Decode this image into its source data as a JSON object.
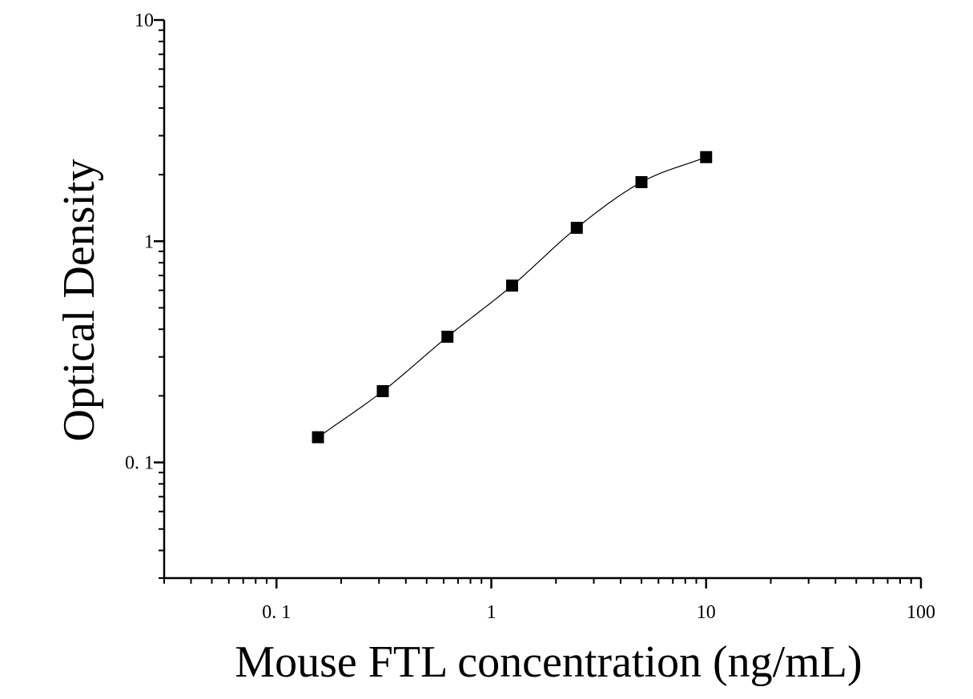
{
  "chart_data": {
    "type": "scatter",
    "title": "",
    "xlabel": "Mouse FTL concentration (ng/mL)",
    "ylabel": "Optical Density",
    "x_scale": "log",
    "y_scale": "log",
    "xlim": [
      0.03,
      100
    ],
    "ylim": [
      0.03,
      10
    ],
    "x_ticks": [
      {
        "value": 0.1,
        "label": "0. 1"
      },
      {
        "value": 1,
        "label": "1"
      },
      {
        "value": 10,
        "label": "10"
      },
      {
        "value": 100,
        "label": "100"
      }
    ],
    "y_ticks": [
      {
        "value": 0.1,
        "label": "0. 1"
      },
      {
        "value": 1,
        "label": "1"
      },
      {
        "value": 10,
        "label": "10"
      }
    ],
    "grid": false,
    "legend": "none",
    "colors": {
      "marker": "#000000",
      "curve": "#000000",
      "axis": "#000000"
    },
    "series": [
      {
        "x": [
          0.156,
          0.3125,
          0.625,
          1.25,
          2.5,
          5,
          10
        ],
        "y": [
          0.13,
          0.21,
          0.37,
          0.63,
          1.15,
          1.85,
          2.4
        ],
        "marker": "square",
        "fit": "four-parameter logistic"
      }
    ]
  }
}
